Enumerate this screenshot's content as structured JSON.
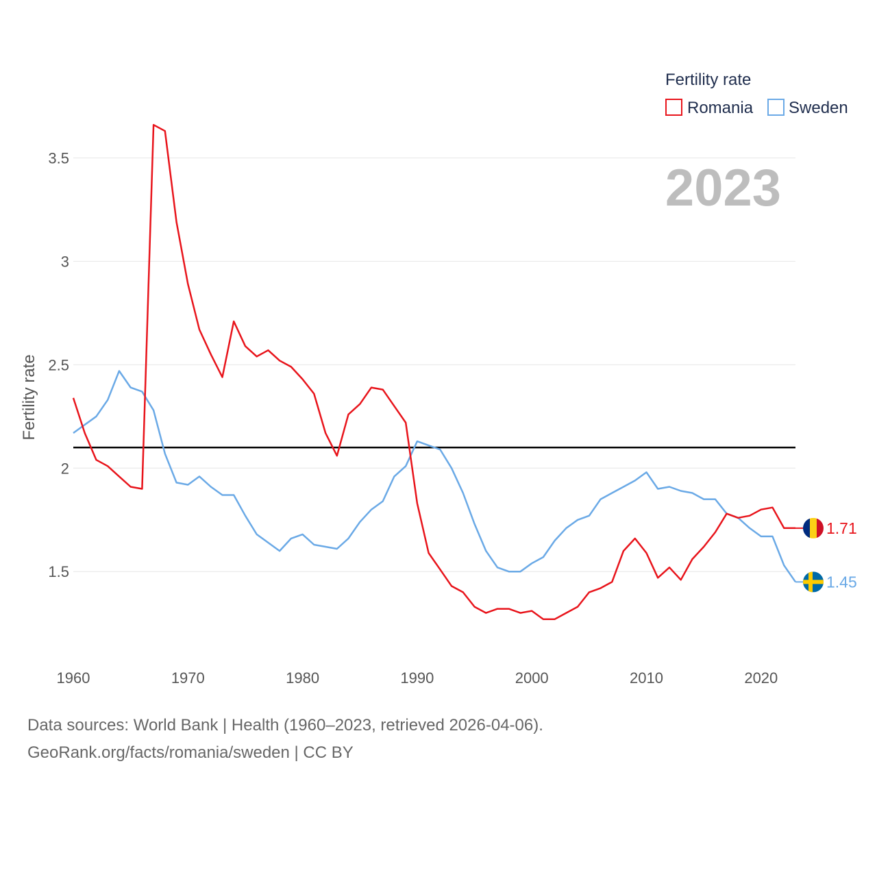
{
  "chart_data": {
    "type": "line",
    "xlabel": "",
    "ylabel": "Fertility rate",
    "xlim": [
      1960,
      2023
    ],
    "ylim": [
      1.1,
      3.75
    ],
    "x_ticks": [
      "1960",
      "1970",
      "1980",
      "1990",
      "2000",
      "2010",
      "2020"
    ],
    "y_ticks": [
      "1.5",
      "2",
      "2.5",
      "3",
      "3.5"
    ],
    "reference_line": 2.1,
    "legend": {
      "title": "Fertility rate",
      "placement": "top-right"
    },
    "watermark_year": "2023",
    "x": [
      1960,
      1961,
      1962,
      1963,
      1964,
      1965,
      1966,
      1967,
      1968,
      1969,
      1970,
      1971,
      1972,
      1973,
      1974,
      1975,
      1976,
      1977,
      1978,
      1979,
      1980,
      1981,
      1982,
      1983,
      1984,
      1985,
      1986,
      1987,
      1988,
      1989,
      1990,
      1991,
      1992,
      1993,
      1994,
      1995,
      1996,
      1997,
      1998,
      1999,
      2000,
      2001,
      2002,
      2003,
      2004,
      2005,
      2006,
      2007,
      2008,
      2009,
      2010,
      2011,
      2012,
      2013,
      2014,
      2015,
      2016,
      2017,
      2018,
      2019,
      2020,
      2021,
      2022,
      2023
    ],
    "series": [
      {
        "name": "Romania",
        "color": "#e8141b",
        "end_label": "1.71",
        "flag": "romania-flag",
        "values": [
          2.34,
          2.17,
          2.04,
          2.01,
          1.96,
          1.91,
          1.9,
          3.66,
          3.63,
          3.19,
          2.89,
          2.67,
          2.55,
          2.44,
          2.71,
          2.59,
          2.54,
          2.57,
          2.52,
          2.49,
          2.43,
          2.36,
          2.17,
          2.06,
          2.26,
          2.31,
          2.39,
          2.38,
          2.3,
          2.22,
          1.83,
          1.59,
          1.51,
          1.43,
          1.4,
          1.33,
          1.3,
          1.32,
          1.32,
          1.3,
          1.31,
          1.27,
          1.27,
          1.3,
          1.33,
          1.4,
          1.42,
          1.45,
          1.6,
          1.66,
          1.59,
          1.47,
          1.52,
          1.46,
          1.56,
          1.62,
          1.69,
          1.78,
          1.76,
          1.77,
          1.8,
          1.81,
          1.71,
          1.71
        ]
      },
      {
        "name": "Sweden",
        "color": "#6aa9e6",
        "end_label": "1.45",
        "flag": "sweden-flag",
        "values": [
          2.17,
          2.21,
          2.25,
          2.33,
          2.47,
          2.39,
          2.37,
          2.28,
          2.07,
          1.93,
          1.92,
          1.96,
          1.91,
          1.87,
          1.87,
          1.77,
          1.68,
          1.64,
          1.6,
          1.66,
          1.68,
          1.63,
          1.62,
          1.61,
          1.66,
          1.74,
          1.8,
          1.84,
          1.96,
          2.01,
          2.13,
          2.11,
          2.09,
          2.0,
          1.88,
          1.73,
          1.6,
          1.52,
          1.5,
          1.5,
          1.54,
          1.57,
          1.65,
          1.71,
          1.75,
          1.77,
          1.85,
          1.88,
          1.91,
          1.94,
          1.98,
          1.9,
          1.91,
          1.89,
          1.88,
          1.85,
          1.85,
          1.78,
          1.76,
          1.71,
          1.67,
          1.67,
          1.53,
          1.45
        ]
      }
    ]
  },
  "footer": {
    "line1": "Data sources: World Bank | Health (1960–2023, retrieved 2026-04-06).",
    "line2": "GeoRank.org/facts/romania/sweden | CC BY"
  }
}
